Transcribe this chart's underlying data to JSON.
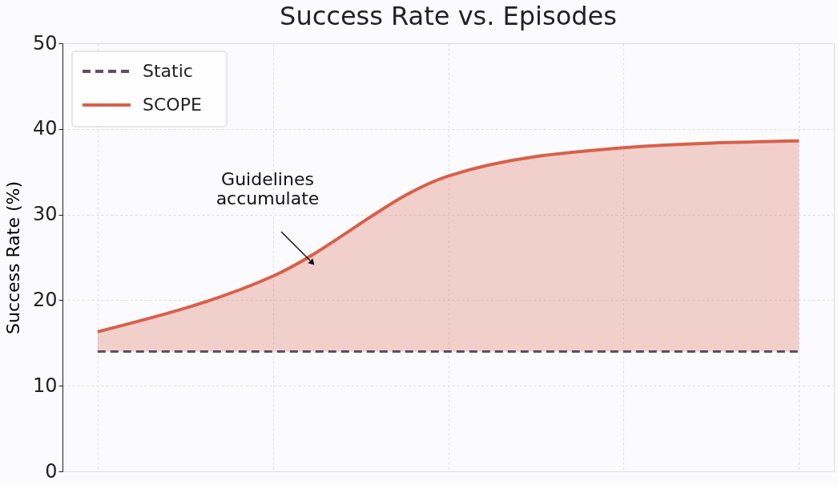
{
  "chart_data": {
    "type": "line",
    "title": "Success Rate vs. Episodes",
    "ylabel": "Success Rate (%)",
    "categories": [
      null,
      null,
      null,
      null,
      null
    ],
    "series": [
      {
        "name": "Static",
        "color": "#5e4d63",
        "values": [
          14.0,
          14.0,
          14.0,
          14.0,
          14.0
        ],
        "line_style": "dashed"
      },
      {
        "name": "SCOPE",
        "color": "#d9604a",
        "values": [
          16.3,
          22.8,
          34.5,
          37.8,
          38.6
        ],
        "lower": [
          14.0,
          14.0,
          14.0,
          14.0,
          14.0
        ],
        "upper": [
          16.3,
          22.8,
          34.5,
          37.8,
          38.6
        ],
        "line_style": "solid"
      }
    ],
    "ylim": [
      0,
      50
    ],
    "yticks": [
      0,
      10,
      20,
      30,
      40,
      50
    ],
    "grid": true,
    "legend": "top left",
    "marker": "none",
    "annotations": [
      "Guidelines\naccumulate"
    ]
  }
}
